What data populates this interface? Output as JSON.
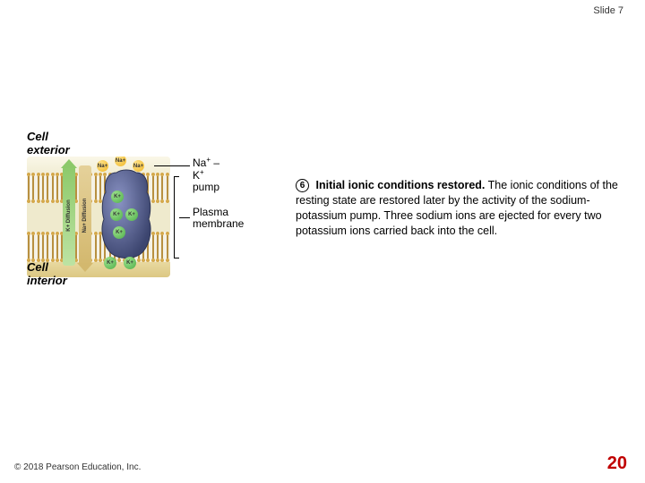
{
  "slide_number_label": "Slide 7",
  "page_number": "20",
  "page_number_color": "#c00000",
  "copyright": "© 2018 Pearson Education, Inc.",
  "diagram": {
    "cell_exterior": "Cell\nexterior",
    "cell_interior": "Cell\ninterior",
    "k_diffusion": "K+ Diffusion",
    "na_diffusion": "Na+ Diffusion",
    "ion_na": "Na+",
    "ion_k": "K+",
    "pump_fill": "#5d6aa8",
    "pump_shadow": "#3c456f",
    "na_color": "#f0b726",
    "k_color": "#4fae4a"
  },
  "labels": {
    "pump_label_1": "Na",
    "pump_label_sup1": "+",
    "pump_label_mid": " – K",
    "pump_label_sup2": "+",
    "pump_label_2": "pump",
    "membrane_1": "Plasma",
    "membrane_2": "membrane"
  },
  "step": {
    "number": "6",
    "title": "Initial ionic conditions restored.",
    "body": " The ionic conditions of the resting state are restored later by the activity of the sodium-potassium pump. Three sodium ions are ejected for every two potassium ions carried back into the cell."
  }
}
